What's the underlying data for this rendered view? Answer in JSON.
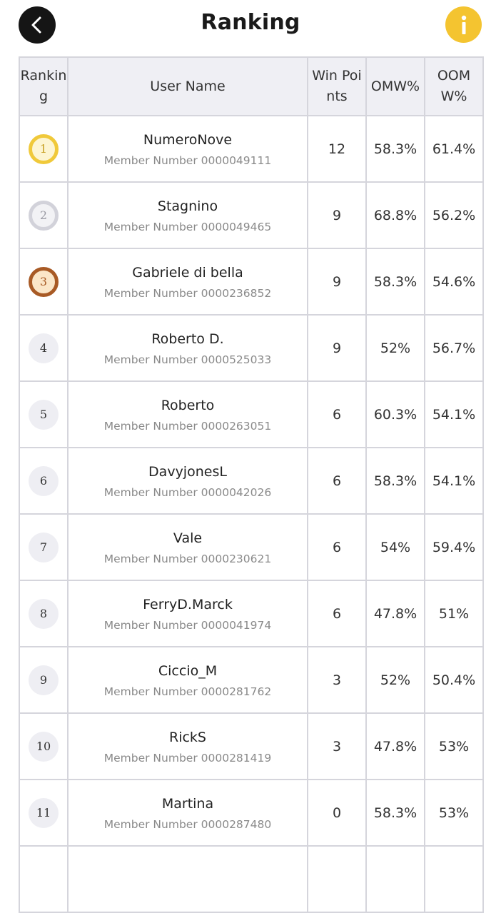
{
  "header": {
    "title": "Ranking",
    "back_icon": "chevron-left-icon",
    "info_icon": "info-icon"
  },
  "colors": {
    "accent_info": "#f4c430",
    "back_button": "#151515",
    "gold": "#f0c93a",
    "silver": "#d2d2da",
    "bronze": "#a85a25",
    "header_bg": "#efeff4"
  },
  "table": {
    "columns": {
      "rank": "Ranking",
      "user": "User Name",
      "points": "Win Points",
      "omw": "OMW%",
      "oomw": "OOMW%"
    },
    "rows": [
      {
        "rank": "1",
        "name": "NumeroNove",
        "member": "Member Number 0000049111",
        "points": "12",
        "omw": "58.3%",
        "oomw": "61.4%"
      },
      {
        "rank": "2",
        "name": "Stagnino",
        "member": "Member Number 0000049465",
        "points": "9",
        "omw": "68.8%",
        "oomw": "56.2%"
      },
      {
        "rank": "3",
        "name": "Gabriele di bella",
        "member": "Member Number 0000236852",
        "points": "9",
        "omw": "58.3%",
        "oomw": "54.6%"
      },
      {
        "rank": "4",
        "name": "Roberto D.",
        "member": "Member Number 0000525033",
        "points": "9",
        "omw": "52%",
        "oomw": "56.7%"
      },
      {
        "rank": "5",
        "name": "Roberto",
        "member": "Member Number 0000263051",
        "points": "6",
        "omw": "60.3%",
        "oomw": "54.1%"
      },
      {
        "rank": "6",
        "name": "DavyjonesL",
        "member": "Member Number 0000042026",
        "points": "6",
        "omw": "58.3%",
        "oomw": "54.1%"
      },
      {
        "rank": "7",
        "name": "Vale",
        "member": "Member Number 0000230621",
        "points": "6",
        "omw": "54%",
        "oomw": "59.4%"
      },
      {
        "rank": "8",
        "name": "FerryD.Marck",
        "member": "Member Number 0000041974",
        "points": "6",
        "omw": "47.8%",
        "oomw": "51%"
      },
      {
        "rank": "9",
        "name": "Ciccio_M",
        "member": "Member Number 0000281762",
        "points": "3",
        "omw": "52%",
        "oomw": "50.4%"
      },
      {
        "rank": "10",
        "name": "RickS",
        "member": "Member Number 0000281419",
        "points": "3",
        "omw": "47.8%",
        "oomw": "53%"
      },
      {
        "rank": "11",
        "name": "Martina",
        "member": "Member Number 0000287480",
        "points": "0",
        "omw": "58.3%",
        "oomw": "53%"
      }
    ]
  }
}
